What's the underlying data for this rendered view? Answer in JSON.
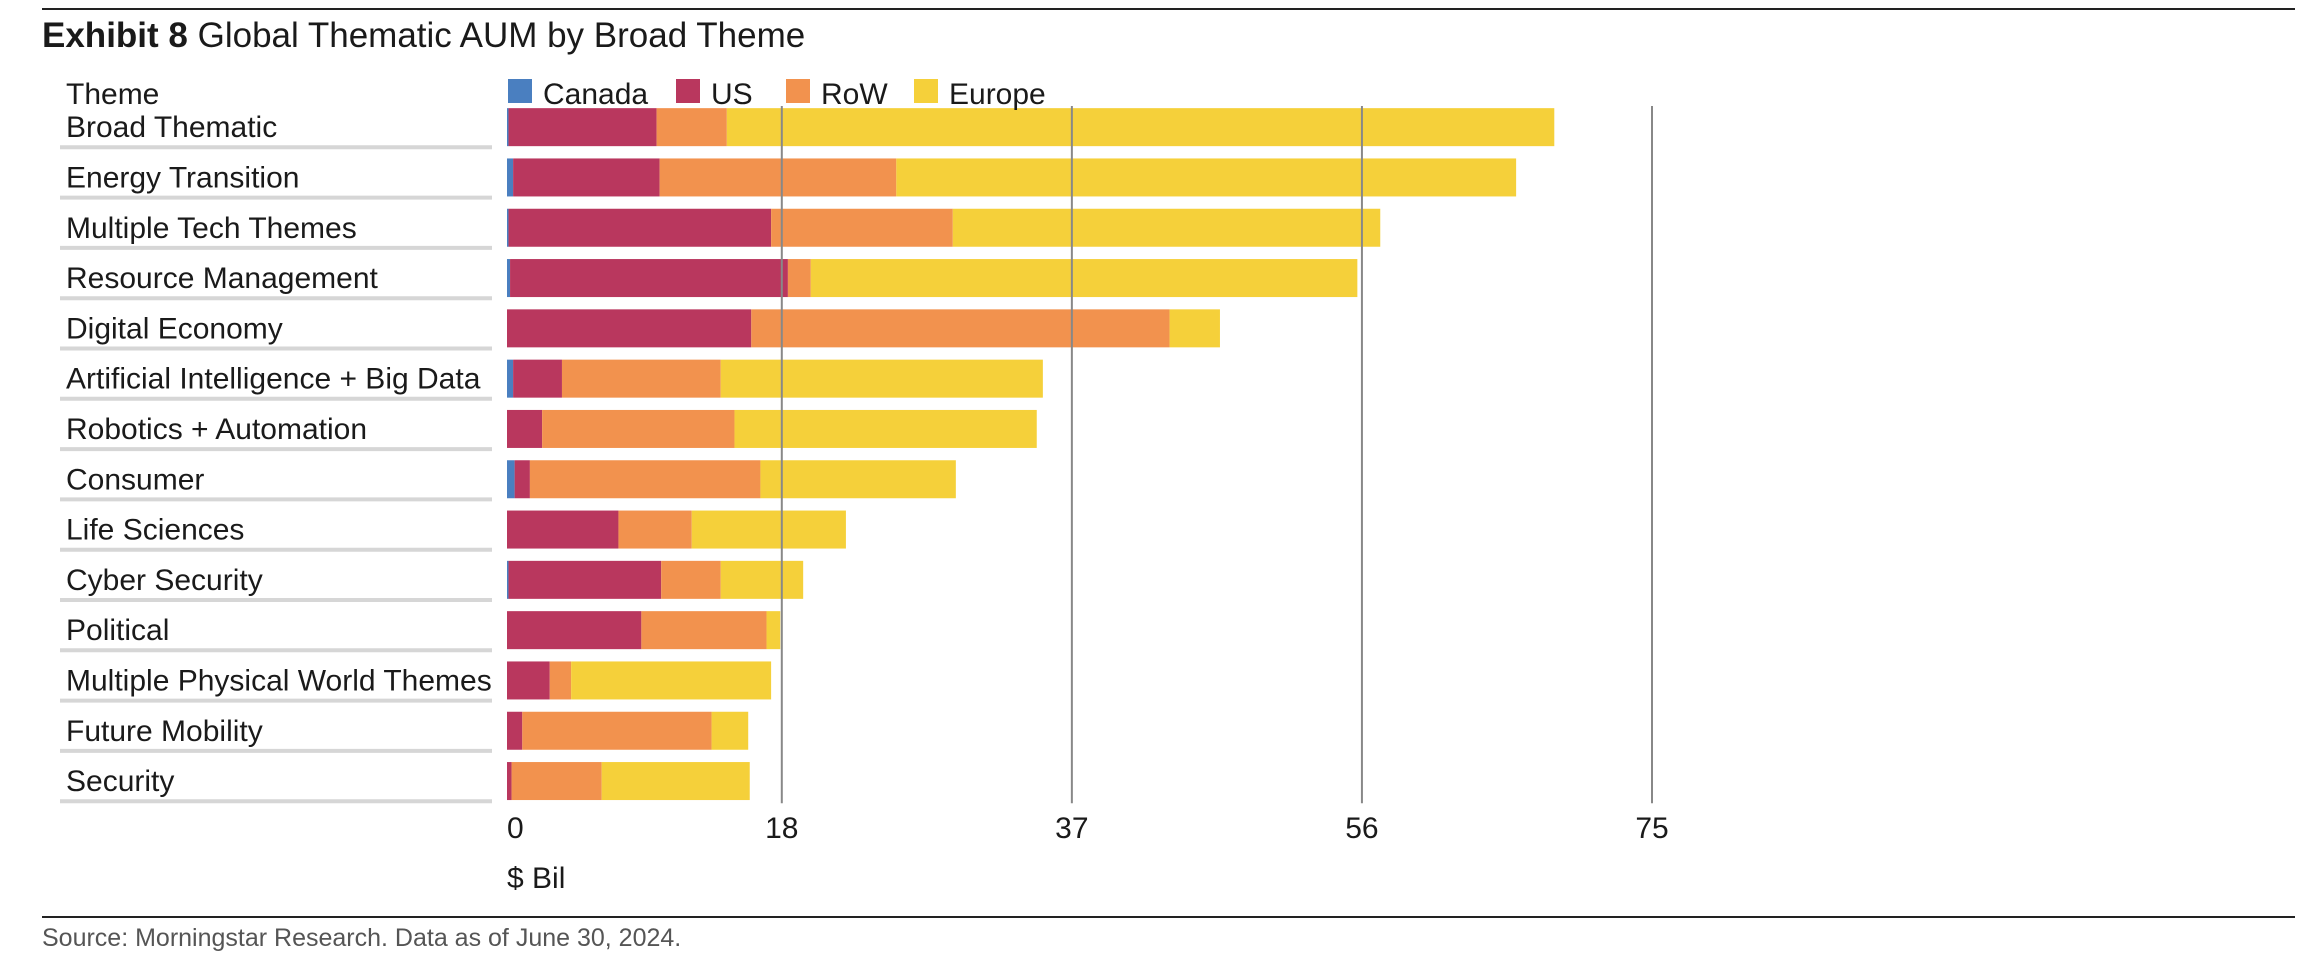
{
  "header": {
    "exhibit": "Exhibit 8",
    "title": "Global Thematic AUM by Broad Theme"
  },
  "footer": {
    "source": "Source: Morningstar Research. Data as of June 30, 2024."
  },
  "colors": {
    "Canada": "#4a7fc0",
    "US": "#b9375e",
    "RoW": "#f2924e",
    "Europe": "#f5d03a",
    "grid": "#888888",
    "row_separator": "#d6d6d6",
    "text": "#1a1a1a"
  },
  "chart_data": {
    "type": "bar",
    "orientation": "horizontal",
    "stacked": true,
    "category_header": "Theme",
    "categories": [
      "Broad Thematic",
      "Energy Transition",
      "Multiple Tech Themes",
      "Resource Management",
      "Digital Economy",
      "Artificial Intelligence + Big Data",
      "Robotics + Automation",
      "Consumer",
      "Life Sciences",
      "Cyber Security",
      "Political",
      "Multiple Physical World Themes",
      "Future Mobility",
      "Security"
    ],
    "series": [
      {
        "name": "Canada",
        "values": [
          0.1,
          0.4,
          0.1,
          0.2,
          0.0,
          0.4,
          0.0,
          0.5,
          0.0,
          0.1,
          0.0,
          0.0,
          0.0,
          0.0
        ]
      },
      {
        "name": "US",
        "values": [
          9.7,
          9.6,
          17.2,
          18.2,
          16.0,
          3.2,
          2.3,
          1.0,
          7.3,
          10.0,
          8.8,
          2.8,
          1.0,
          0.3
        ]
      },
      {
        "name": "RoW",
        "values": [
          4.6,
          15.5,
          11.9,
          1.5,
          27.4,
          10.4,
          12.6,
          15.1,
          4.8,
          3.9,
          8.2,
          1.4,
          12.4,
          5.9
        ]
      },
      {
        "name": "Europe",
        "values": [
          54.2,
          40.6,
          28.0,
          35.8,
          3.3,
          21.1,
          19.8,
          12.8,
          10.1,
          5.4,
          0.9,
          13.1,
          2.4,
          9.7
        ]
      }
    ],
    "xlabel": "$ Bil",
    "xticks": [
      "0",
      "18",
      "37",
      "56",
      "75"
    ],
    "xlim": [
      0,
      75
    ],
    "grid": true,
    "legend_placement": "top"
  }
}
